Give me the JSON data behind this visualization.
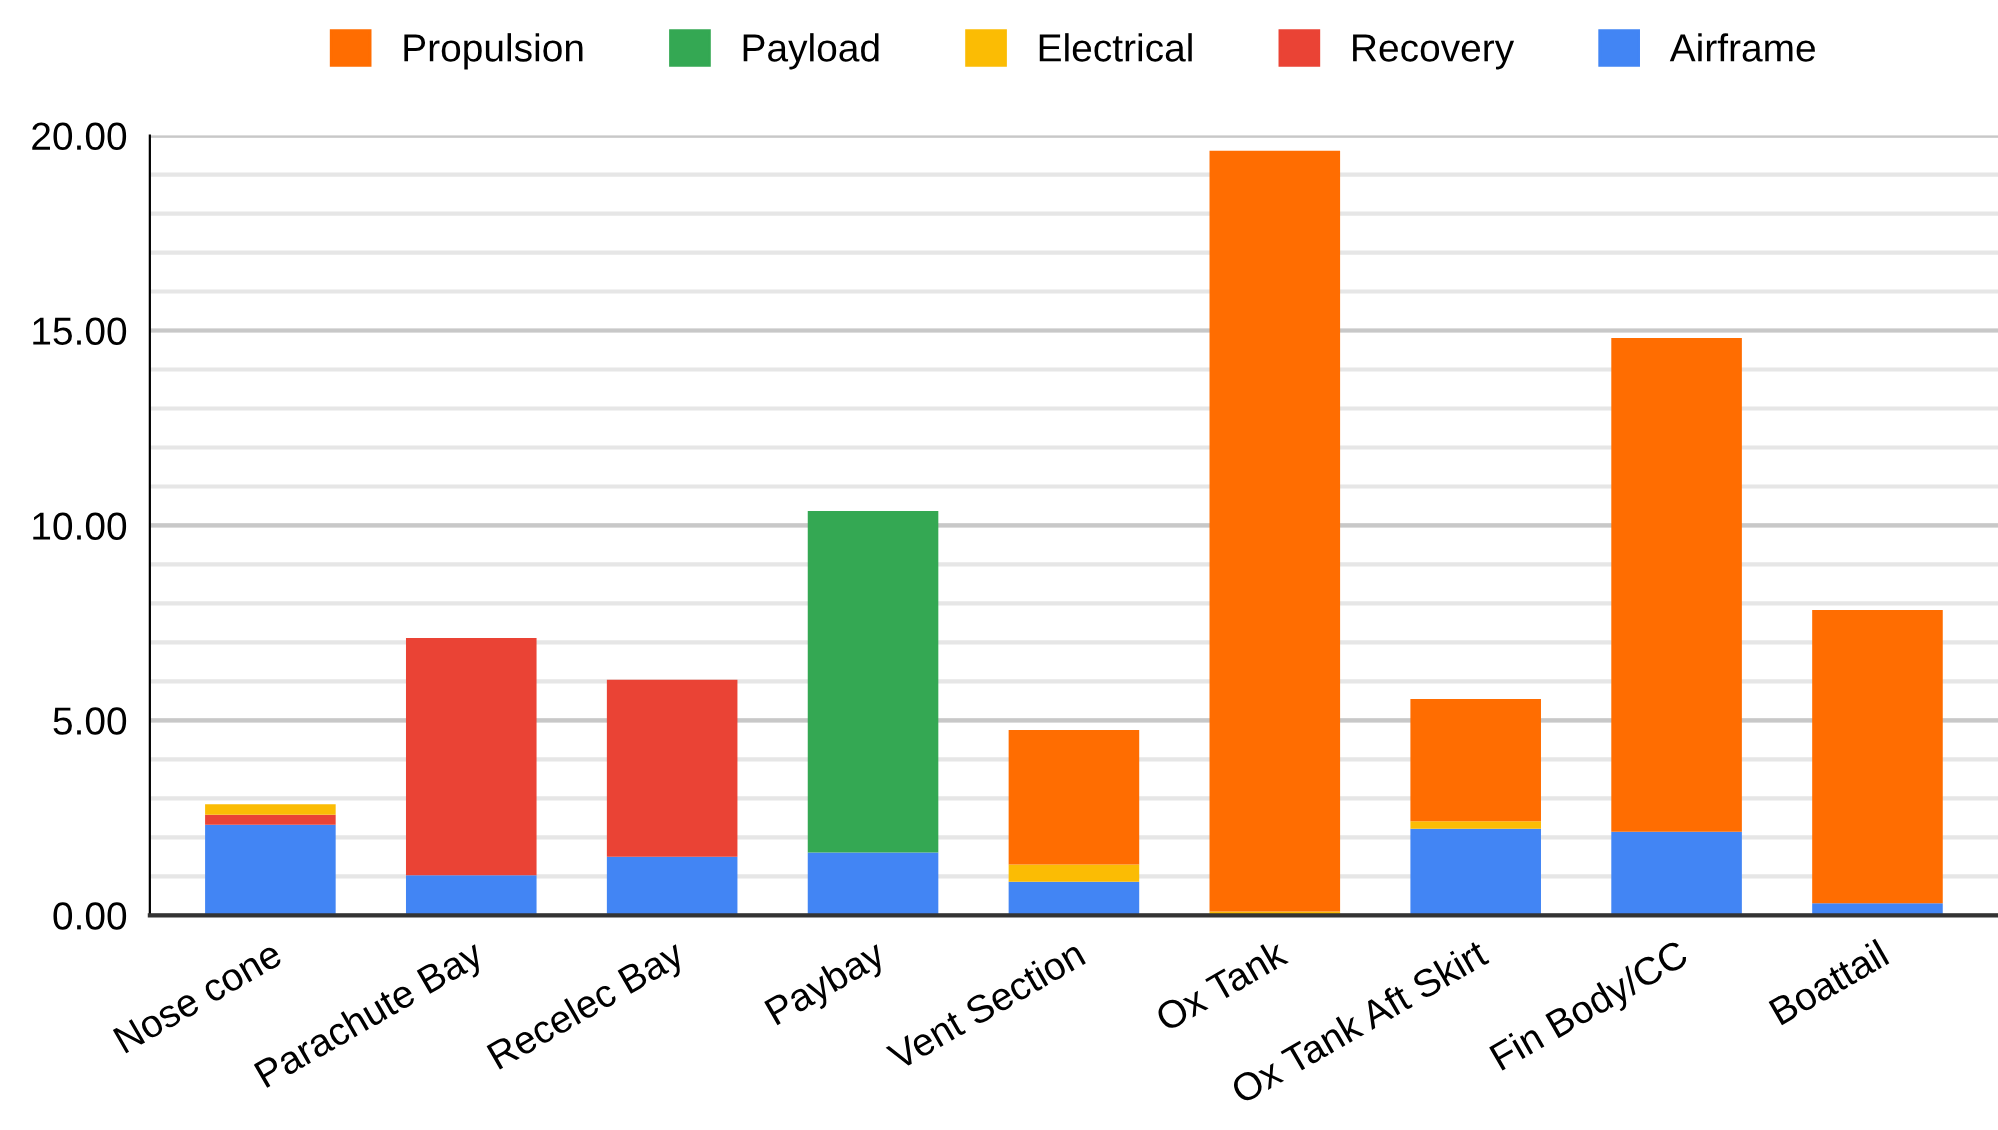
{
  "chart_data": {
    "type": "bar",
    "stacked": true,
    "categories": [
      "Nose cone",
      "Parachute Bay",
      "Recelec Bay",
      "Paybay",
      "Vent Section",
      "Ox Tank",
      "Ox Tank Aft Skirt",
      "Fin Body/CC",
      "Boattail"
    ],
    "series": [
      {
        "name": "Airframe",
        "color": "#4285f4",
        "values": [
          2.32,
          1.03,
          1.5,
          1.61,
          0.86,
          0,
          2.22,
          2.14,
          0.31
        ]
      },
      {
        "name": "Recovery",
        "color": "#ea4335",
        "values": [
          0.26,
          6.08,
          4.54,
          0,
          0,
          0,
          0,
          0,
          0
        ]
      },
      {
        "name": "Electrical",
        "color": "#fbbc04",
        "values": [
          0.27,
          0,
          0,
          0,
          0.44,
          0.1,
          0.19,
          0,
          0
        ]
      },
      {
        "name": "Payload",
        "color": "#34a853",
        "values": [
          0,
          0,
          0,
          8.76,
          0,
          0,
          0,
          0,
          0
        ]
      },
      {
        "name": "Propulsion",
        "color": "#ff6d01",
        "values": [
          0,
          0,
          0,
          0,
          3.45,
          19.51,
          3.14,
          12.67,
          7.52
        ]
      }
    ],
    "ylim": [
      0,
      20
    ],
    "yticks": [
      {
        "value": 0,
        "label": "0.00"
      },
      {
        "value": 1,
        "label": null
      },
      {
        "value": 2,
        "label": null
      },
      {
        "value": 3,
        "label": null
      },
      {
        "value": 4,
        "label": null
      },
      {
        "value": 5,
        "label": "5.00"
      },
      {
        "value": 6,
        "label": null
      },
      {
        "value": 7,
        "label": null
      },
      {
        "value": 8,
        "label": null
      },
      {
        "value": 9,
        "label": null
      },
      {
        "value": 10,
        "label": "10.00"
      },
      {
        "value": 11,
        "label": null
      },
      {
        "value": 12,
        "label": null
      },
      {
        "value": 13,
        "label": null
      },
      {
        "value": 14,
        "label": null
      },
      {
        "value": 15,
        "label": "15.00"
      },
      {
        "value": 16,
        "label": null
      },
      {
        "value": 17,
        "label": null
      },
      {
        "value": 18,
        "label": null
      },
      {
        "value": 19,
        "label": null
      },
      {
        "value": 20,
        "label": "20.00"
      }
    ],
    "grid": "y",
    "legend": "top"
  }
}
